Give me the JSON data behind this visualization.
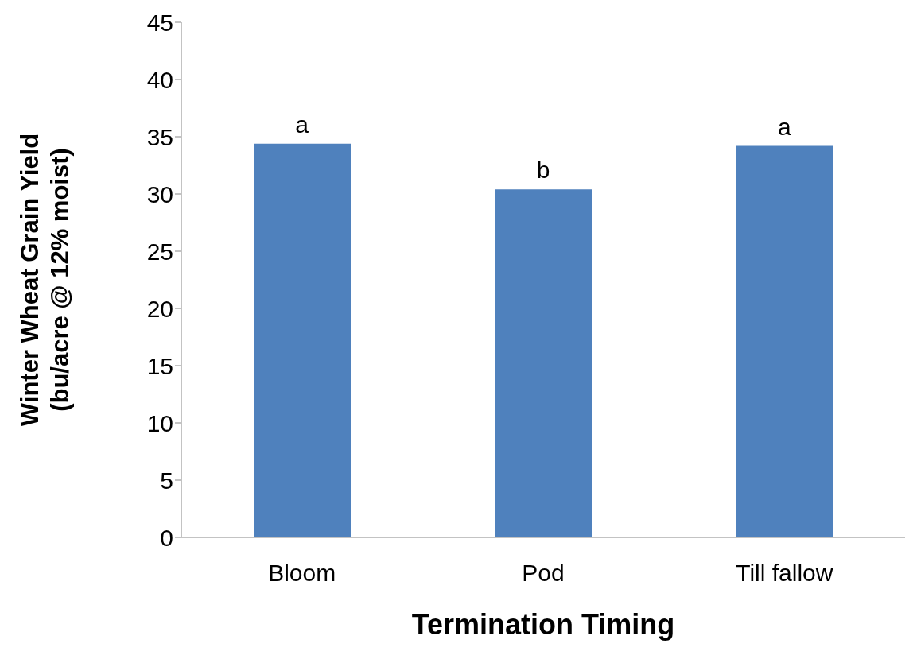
{
  "chart_data": {
    "type": "bar",
    "categories": [
      "Bloom",
      "Pod",
      "Till fallow"
    ],
    "values": [
      34.4,
      30.4,
      34.2
    ],
    "color": "#4f81bd",
    "ylim": [
      0,
      45
    ],
    "yticks": [
      0,
      5,
      10,
      15,
      20,
      25,
      30,
      35,
      40,
      45
    ],
    "grid": false,
    "xlabel": "Termination Timing",
    "ylabel": "Winter Wheat Grain Yield\n(bu/acre @ 12% moist)",
    "annotations": [
      {
        "text": "a",
        "x": "Bloom",
        "y": 34.4
      },
      {
        "text": "b",
        "x": "Pod",
        "y": 30.4
      },
      {
        "text": "a",
        "x": "Till fallow",
        "y": 34.2
      }
    ]
  }
}
